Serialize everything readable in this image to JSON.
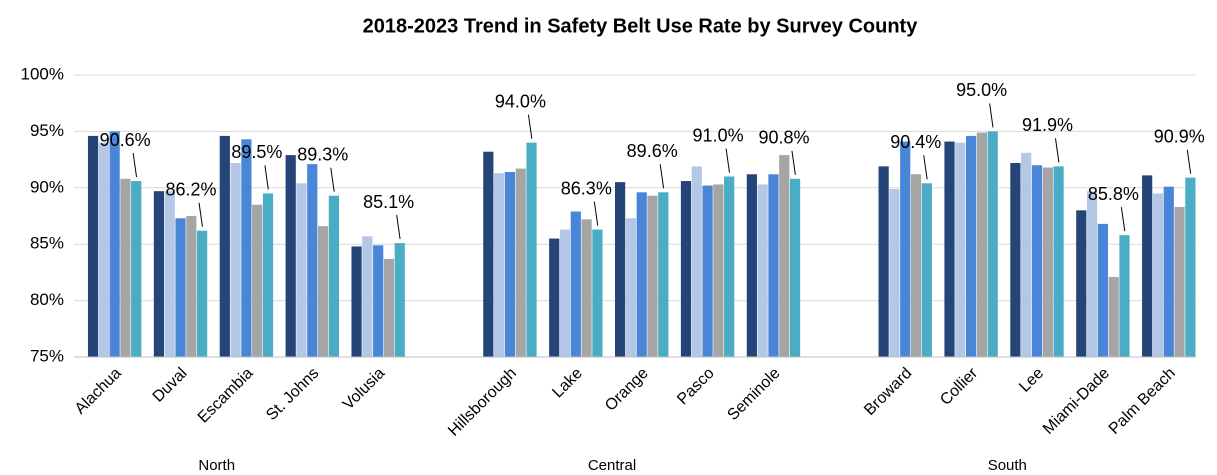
{
  "chart_data": {
    "type": "bar",
    "title": "2018-2023 Trend in Safety Belt Use Rate by Survey County",
    "categories": [
      "Alachua",
      "Duval",
      "Escambia",
      "St. Johns",
      "Volusia",
      null,
      "Hillsborough",
      "Lake",
      "Orange",
      "Pasco",
      "Seminole",
      null,
      "Broward",
      "Collier",
      "Lee",
      "Miami-Dade",
      "Palm Beach"
    ],
    "groups": [
      "North",
      "Central",
      "South"
    ],
    "series": [
      {
        "color": "#254478",
        "values": [
          94.6,
          89.7,
          94.6,
          92.9,
          84.8,
          null,
          93.2,
          85.5,
          90.5,
          90.6,
          91.2,
          null,
          91.9,
          94.1,
          92.2,
          88.0,
          91.1
        ]
      },
      {
        "color": "#b4c7e7",
        "values": [
          94.0,
          89.7,
          92.2,
          90.4,
          85.7,
          null,
          91.3,
          86.3,
          87.3,
          91.9,
          90.3,
          null,
          89.9,
          94.0,
          93.1,
          89.7,
          89.5
        ]
      },
      {
        "color": "#4a86d8",
        "values": [
          95.0,
          87.3,
          94.3,
          92.1,
          84.9,
          null,
          91.4,
          87.9,
          89.6,
          90.2,
          91.2,
          null,
          94.1,
          94.6,
          92.0,
          86.8,
          90.1
        ]
      },
      {
        "color": "#a5a5a5",
        "values": [
          90.8,
          87.5,
          88.5,
          86.6,
          83.7,
          null,
          91.7,
          87.2,
          89.3,
          90.3,
          92.9,
          null,
          91.2,
          94.9,
          91.8,
          82.1,
          88.3
        ]
      },
      {
        "color": "#4bacc6",
        "values": [
          90.6,
          86.2,
          89.5,
          89.3,
          85.1,
          null,
          94.0,
          86.3,
          89.6,
          91.0,
          90.8,
          null,
          90.4,
          95.0,
          91.9,
          85.8,
          90.9
        ],
        "value_labels": [
          "90.6%",
          "86.2%",
          "89.5%",
          "89.3%",
          "85.1%",
          null,
          "94.0%",
          "86.3%",
          "89.6%",
          "91.0%",
          "90.8%",
          null,
          "90.4%",
          "95.0%",
          "91.9%",
          "85.8%",
          "90.9%"
        ]
      }
    ],
    "ylim": [
      75,
      100
    ],
    "yticks": [
      {
        "value": 75,
        "label": "75%"
      },
      {
        "value": 80,
        "label": "80%"
      },
      {
        "value": 85,
        "label": "85%"
      },
      {
        "value": 90,
        "label": "90%"
      },
      {
        "value": 95,
        "label": "95%"
      },
      {
        "value": 100,
        "label": "100%"
      }
    ],
    "grid": true
  }
}
